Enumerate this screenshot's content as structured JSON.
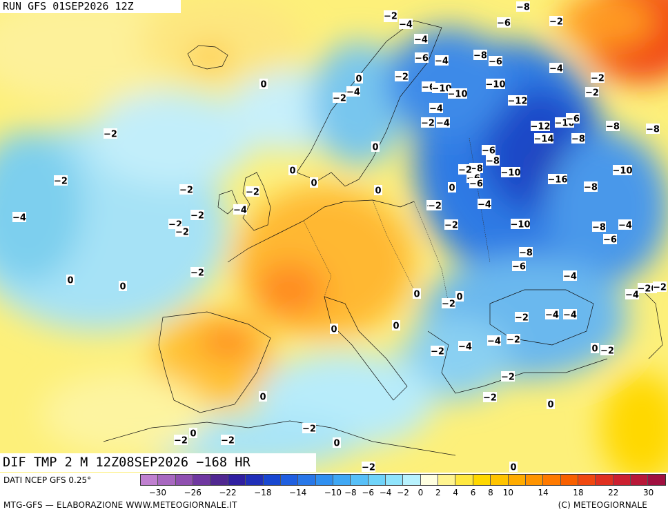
{
  "header": {
    "run": "RUN GFS 01SEP2026 12Z"
  },
  "field": {
    "title": "DIF TMP 2 M 12Z08SEP2026 −168 HR"
  },
  "footer": {
    "data_source": "DATI NCEP GFS 0.25°",
    "credit_left": "MTG-GFS — ELABORAZIONE WWW.METEOGIORNALE.IT",
    "credit_right": "(C) METEOGIORNALE"
  },
  "legend": {
    "colors": [
      "#c080d0",
      "#a868c0",
      "#9050b0",
      "#7038a0",
      "#502890",
      "#3020a0",
      "#2030b8",
      "#1848d0",
      "#2060e0",
      "#2878e8",
      "#3090f0",
      "#40a8f4",
      "#58c0f8",
      "#70d4fa",
      "#90e4fc",
      "#b8f2fe",
      "#ffffe0",
      "#fff490",
      "#ffe840",
      "#ffd800",
      "#ffc400",
      "#ffac00",
      "#ff9400",
      "#ff7a00",
      "#f86000",
      "#f04810",
      "#e03020",
      "#cc2030",
      "#b81838",
      "#a01040"
    ],
    "ticks": [
      "−30",
      "−26",
      "−22",
      "−18",
      "−14",
      "−10",
      "−8",
      "−6",
      "−4",
      "−2",
      "0",
      "2",
      "4",
      "6",
      "8",
      "10",
      "14",
      "18",
      "22",
      "30"
    ]
  },
  "map_labels": [
    {
      "text": "−2"
    },
    {
      "text": "−4"
    },
    {
      "text": "−8"
    },
    {
      "text": "−6"
    },
    {
      "text": "−2"
    },
    {
      "text": "−4"
    },
    {
      "text": "−4"
    },
    {
      "text": "−6"
    },
    {
      "text": "−8"
    },
    {
      "text": "−6"
    },
    {
      "text": "−2"
    },
    {
      "text": "−4"
    },
    {
      "text": "−2"
    },
    {
      "text": "−6"
    },
    {
      "text": "−10"
    },
    {
      "text": "−10"
    },
    {
      "text": "−10"
    },
    {
      "text": "−2"
    },
    {
      "text": "−4"
    },
    {
      "text": "−2"
    },
    {
      "text": "−12"
    },
    {
      "text": "−4"
    },
    {
      "text": "−2"
    },
    {
      "text": "−4"
    },
    {
      "text": "−12"
    },
    {
      "text": "−10"
    },
    {
      "text": "−6"
    },
    {
      "text": "−8"
    },
    {
      "text": "−8"
    },
    {
      "text": "−14"
    },
    {
      "text": "−8"
    },
    {
      "text": "−6"
    },
    {
      "text": "−8"
    },
    {
      "text": "−10"
    },
    {
      "text": "−6"
    },
    {
      "text": "−16"
    },
    {
      "text": "−10"
    },
    {
      "text": "−2"
    },
    {
      "text": "−8"
    },
    {
      "text": "−4"
    },
    {
      "text": "−2"
    },
    {
      "text": "−10"
    },
    {
      "text": "−8"
    },
    {
      "text": "−4"
    },
    {
      "text": "−6"
    },
    {
      "text": "−8"
    },
    {
      "text": "−6"
    },
    {
      "text": "−4"
    },
    {
      "text": "−20"
    },
    {
      "text": "−4"
    },
    {
      "text": "−2"
    },
    {
      "text": "−2"
    },
    {
      "text": "−4"
    },
    {
      "text": "−4"
    },
    {
      "text": "−2"
    },
    {
      "text": "−4"
    },
    {
      "text": "−2"
    },
    {
      "text": "0"
    },
    {
      "text": "−2"
    },
    {
      "text": "−2"
    },
    {
      "text": "−2"
    },
    {
      "text": "0"
    },
    {
      "text": "−2"
    },
    {
      "text": "−2"
    },
    {
      "text": "−2"
    },
    {
      "text": "−4"
    },
    {
      "text": "−2"
    },
    {
      "text": "−2"
    },
    {
      "text": "−4"
    },
    {
      "text": "−2"
    },
    {
      "text": "−2"
    },
    {
      "text": "−2"
    },
    {
      "text": "−2"
    },
    {
      "text": "0"
    },
    {
      "text": "0"
    },
    {
      "text": "0"
    },
    {
      "text": "0"
    },
    {
      "text": "0"
    },
    {
      "text": "0"
    },
    {
      "text": "0"
    },
    {
      "text": "0"
    },
    {
      "text": "0"
    },
    {
      "text": "0"
    },
    {
      "text": "0"
    },
    {
      "text": "0"
    },
    {
      "text": "0"
    },
    {
      "text": "0"
    },
    {
      "text": "0"
    },
    {
      "text": "0"
    },
    {
      "text": "−2"
    },
    {
      "text": "−2"
    },
    {
      "text": "−2"
    },
    {
      "text": "−4"
    },
    {
      "text": "−2"
    },
    {
      "text": "0"
    },
    {
      "text": "−2"
    },
    {
      "text": "−2"
    },
    {
      "text": "−8"
    },
    {
      "text": "−6"
    },
    {
      "text": "−2"
    }
  ]
}
